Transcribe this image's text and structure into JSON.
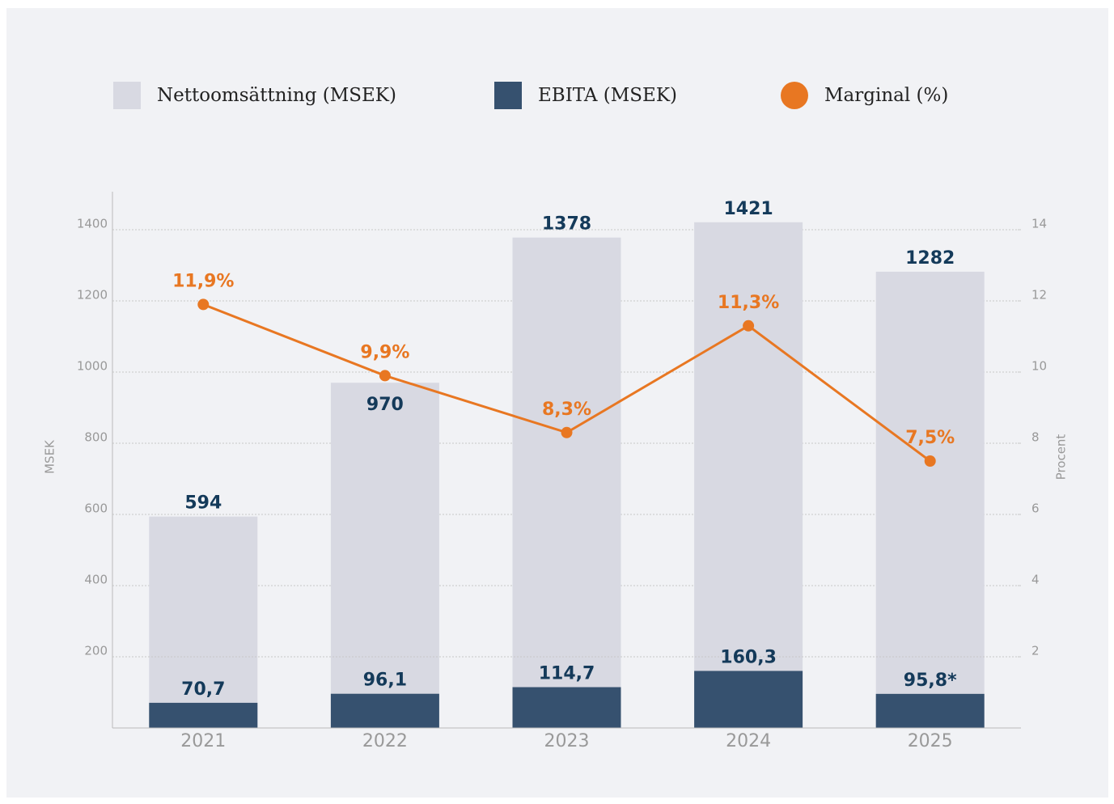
{
  "chart_data": {
    "type": "bar",
    "categories": [
      "2021",
      "2022",
      "2023",
      "2024",
      "2025"
    ],
    "series": [
      {
        "name": "Nettoomsättning (MSEK)",
        "color": "#d8d9e2",
        "values": [
          594,
          970,
          1378,
          1421,
          1282
        ]
      },
      {
        "name": "EBITA (MSEK)",
        "color": "#36516f",
        "values": [
          70.7,
          96.1,
          114.7,
          160.3,
          95.8
        ],
        "value_labels": [
          "70,7",
          "96,1",
          "114,7",
          "160,3",
          "95,8*"
        ]
      },
      {
        "name": "Marginal (%)",
        "color": "#e87722",
        "type": "line",
        "axis": "y2",
        "values": [
          11.9,
          9.9,
          8.3,
          11.3,
          7.5
        ],
        "value_labels": [
          "11,9%",
          "9,9%",
          "8,3%",
          "11,3%",
          "7,5%"
        ]
      }
    ],
    "ylabel": "MSEK",
    "y2label": "Procent",
    "ylim": [
      0,
      1500
    ],
    "yticks": [
      200,
      400,
      600,
      800,
      1000,
      1200,
      1400
    ],
    "y2lim": [
      0,
      15
    ],
    "y2ticks": [
      2,
      4,
      6,
      8,
      10,
      12,
      14
    ],
    "grid": true,
    "legend": "top"
  }
}
